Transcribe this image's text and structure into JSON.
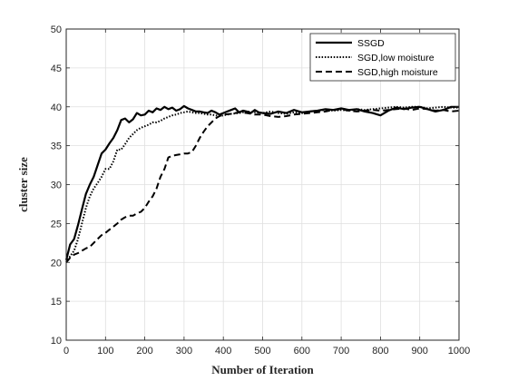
{
  "chart_data": {
    "type": "line",
    "xlabel": "Number of Iteration",
    "ylabel": "cluster size",
    "xlim": [
      0,
      1000
    ],
    "ylim": [
      10,
      50
    ],
    "xticks": [
      0,
      100,
      200,
      300,
      400,
      500,
      600,
      700,
      800,
      900,
      1000
    ],
    "yticks": [
      10,
      15,
      20,
      25,
      30,
      35,
      40,
      45,
      50
    ],
    "grid": true,
    "legend_position": "top-right",
    "series": [
      {
        "name": "SSGD",
        "style": "solid",
        "color": "#000000",
        "x": [
          0,
          10,
          20,
          30,
          40,
          50,
          60,
          70,
          80,
          90,
          100,
          110,
          120,
          130,
          140,
          150,
          160,
          170,
          180,
          190,
          200,
          210,
          220,
          230,
          240,
          250,
          260,
          270,
          280,
          290,
          300,
          310,
          320,
          330,
          340,
          350,
          360,
          370,
          380,
          390,
          400,
          410,
          420,
          430,
          440,
          450,
          460,
          470,
          480,
          490,
          500,
          520,
          540,
          560,
          580,
          600,
          620,
          640,
          660,
          680,
          700,
          720,
          740,
          760,
          780,
          800,
          820,
          840,
          860,
          880,
          900,
          920,
          940,
          960,
          980,
          1000
        ],
        "y": [
          20.3,
          22.3,
          23.0,
          24.8,
          26.8,
          28.8,
          30.0,
          31.0,
          32.5,
          34.0,
          34.5,
          35.3,
          36.0,
          37.0,
          38.3,
          38.5,
          38.0,
          38.4,
          39.2,
          38.9,
          39.0,
          39.5,
          39.3,
          39.8,
          39.6,
          40.0,
          39.7,
          39.9,
          39.5,
          39.7,
          40.1,
          39.8,
          39.6,
          39.4,
          39.4,
          39.3,
          39.2,
          39.5,
          39.3,
          39.0,
          39.2,
          39.4,
          39.6,
          39.8,
          39.3,
          39.5,
          39.4,
          39.2,
          39.6,
          39.3,
          39.2,
          39.1,
          39.4,
          39.2,
          39.6,
          39.3,
          39.4,
          39.5,
          39.7,
          39.6,
          39.8,
          39.6,
          39.7,
          39.4,
          39.2,
          38.9,
          39.5,
          39.9,
          39.7,
          39.9,
          40.0,
          39.7,
          39.4,
          39.6,
          40.0,
          40.0
        ]
      },
      {
        "name": "SGD,low moisture",
        "style": "dotted",
        "color": "#000000",
        "x": [
          0,
          10,
          20,
          30,
          40,
          50,
          60,
          70,
          80,
          90,
          100,
          110,
          120,
          130,
          140,
          150,
          160,
          170,
          180,
          190,
          200,
          210,
          220,
          230,
          240,
          250,
          260,
          270,
          280,
          290,
          300,
          310,
          320,
          330,
          340,
          350,
          360,
          370,
          380,
          390,
          400,
          420,
          440,
          460,
          480,
          500,
          520,
          540,
          560,
          580,
          600,
          620,
          640,
          660,
          680,
          700,
          720,
          740,
          760,
          780,
          800,
          820,
          840,
          860,
          880,
          900,
          920,
          940,
          960,
          980,
          1000
        ],
        "y": [
          20.0,
          20.8,
          21.5,
          23.0,
          25.0,
          27.0,
          28.5,
          29.5,
          30.2,
          31.0,
          32.0,
          32.0,
          33.0,
          34.5,
          34.5,
          35.2,
          36.0,
          36.5,
          37.0,
          37.3,
          37.5,
          37.7,
          38.0,
          38.0,
          38.2,
          38.5,
          38.7,
          38.9,
          39.0,
          39.2,
          39.3,
          39.4,
          39.3,
          39.2,
          39.2,
          39.1,
          39.0,
          39.0,
          38.9,
          38.8,
          38.9,
          39.1,
          39.2,
          39.4,
          39.3,
          39.2,
          39.4,
          39.2,
          39.1,
          39.3,
          39.2,
          39.4,
          39.5,
          39.6,
          39.5,
          39.6,
          39.5,
          39.7,
          39.6,
          39.7,
          39.8,
          39.9,
          40.0,
          39.9,
          40.0,
          40.0,
          39.8,
          39.9,
          40.0,
          39.9,
          39.9
        ]
      },
      {
        "name": "SGD,high moisture",
        "style": "dashed",
        "color": "#000000",
        "x": [
          0,
          10,
          20,
          30,
          40,
          50,
          60,
          70,
          80,
          90,
          100,
          110,
          120,
          130,
          140,
          150,
          160,
          170,
          180,
          190,
          200,
          210,
          220,
          230,
          240,
          250,
          260,
          270,
          280,
          290,
          300,
          310,
          320,
          330,
          340,
          350,
          360,
          370,
          380,
          390,
          400,
          420,
          440,
          460,
          480,
          500,
          520,
          540,
          560,
          580,
          600,
          620,
          640,
          660,
          680,
          700,
          720,
          740,
          760,
          780,
          800,
          820,
          840,
          860,
          880,
          900,
          920,
          940,
          960,
          980,
          1000
        ],
        "y": [
          20.0,
          20.6,
          21.0,
          21.2,
          21.5,
          21.8,
          22.0,
          22.5,
          23.0,
          23.5,
          23.8,
          24.2,
          24.6,
          25.0,
          25.5,
          25.8,
          26.0,
          26.0,
          26.3,
          26.5,
          27.0,
          27.8,
          28.5,
          29.5,
          31.0,
          32.0,
          33.5,
          33.7,
          33.8,
          33.9,
          34.0,
          34.0,
          34.2,
          35.0,
          36.0,
          36.8,
          37.5,
          38.0,
          38.5,
          38.8,
          39.0,
          39.1,
          39.3,
          39.2,
          39.0,
          39.0,
          38.8,
          38.7,
          38.8,
          39.0,
          39.1,
          39.2,
          39.3,
          39.4,
          39.6,
          39.7,
          39.5,
          39.4,
          39.5,
          39.6,
          39.5,
          39.6,
          39.7,
          39.8,
          39.6,
          39.8,
          39.7,
          39.5,
          39.6,
          39.4,
          39.5
        ]
      }
    ]
  }
}
